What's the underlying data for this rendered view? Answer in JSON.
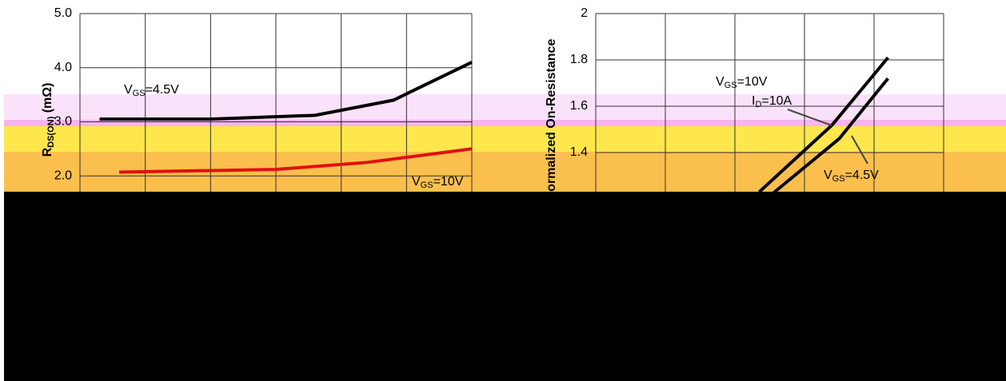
{
  "chart_data": [
    {
      "type": "line",
      "y_label": [
        "R",
        "DS(ON)",
        " (mΩ)"
      ],
      "xlim": [
        0,
        30
      ],
      "xgrid": [
        0,
        5,
        10,
        15,
        20,
        25,
        30
      ],
      "ylim": [
        1.0,
        5.0
      ],
      "yticks": [
        {
          "value": 2,
          "label": "2.0"
        },
        {
          "value": 3,
          "label": "3.0"
        },
        {
          "value": 4,
          "label": "4.0"
        },
        {
          "value": 5,
          "label": "5.0"
        }
      ],
      "grid": true,
      "series": [
        {
          "name": [
            "V",
            "GS",
            "=4.5V"
          ],
          "color": "#000000",
          "x": [
            1.5,
            10,
            18,
            24,
            30
          ],
          "values": [
            3.05,
            3.05,
            3.12,
            3.4,
            4.1
          ]
        },
        {
          "name": [
            "V",
            "GS",
            "=10V"
          ],
          "color": "#e01010",
          "x": [
            3,
            15,
            22,
            30
          ],
          "values": [
            2.07,
            2.12,
            2.25,
            2.5
          ]
        }
      ]
    },
    {
      "type": "line",
      "y_label": [
        "Normalized On-Resistance"
      ],
      "annotation": [
        "I",
        "D",
        "=10A"
      ],
      "xlim": [
        0,
        100
      ],
      "xgrid": [
        0,
        20,
        40,
        60,
        80,
        100
      ],
      "ylim": [
        1.0,
        2.0
      ],
      "yticks": [
        {
          "value": 1.4,
          "label": "1.4"
        },
        {
          "value": 1.6,
          "label": "1.6"
        },
        {
          "value": 1.8,
          "label": "1.8"
        },
        2
      ],
      "grid": true,
      "series": [
        {
          "name": [
            "V",
            "GS",
            "=10V"
          ],
          "color": "#000000",
          "x": [
            47,
            68,
            84
          ],
          "values": [
            1.23,
            1.52,
            1.81
          ]
        },
        {
          "name": [
            "V",
            "GS",
            "=4.5V"
          ],
          "color": "#000000",
          "x": [
            49,
            70,
            84
          ],
          "values": [
            1.2,
            1.46,
            1.72
          ]
        }
      ]
    }
  ]
}
